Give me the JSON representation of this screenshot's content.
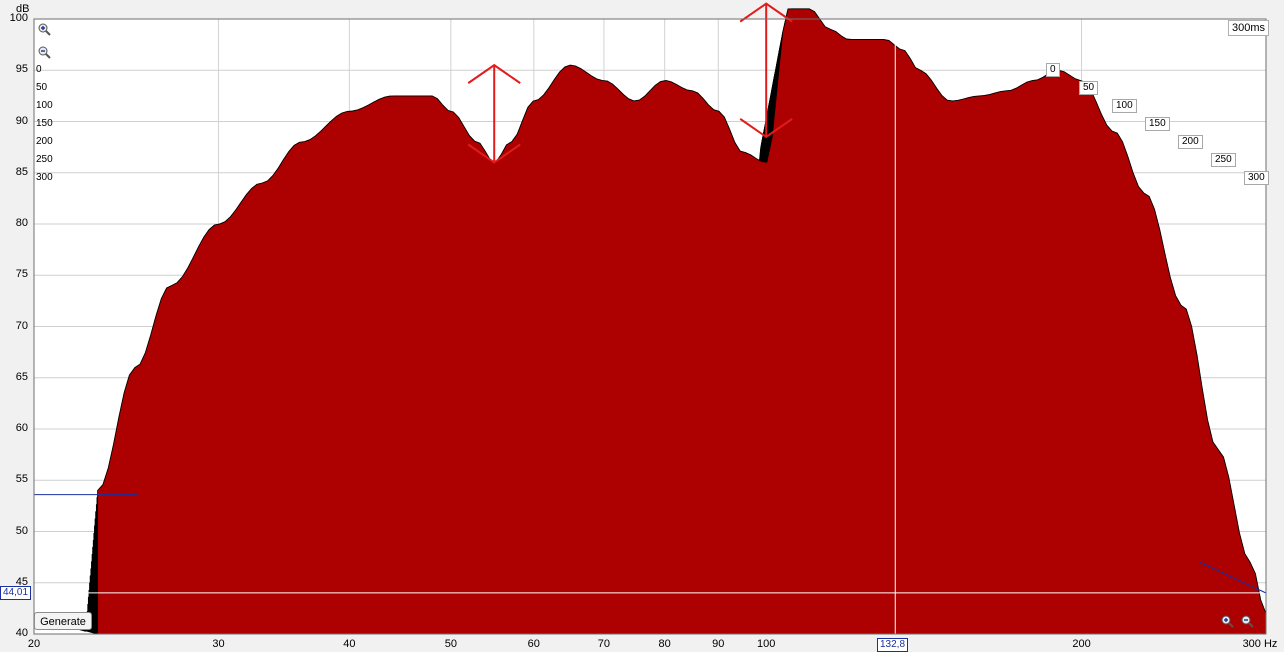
{
  "chart_data": {
    "type": "area",
    "variant": "waterfall (cumulative spectral decay), 3D",
    "title": "",
    "ylabel": "dB",
    "xlabel": "Hz",
    "x_scale": "log",
    "xlim": [
      20,
      300
    ],
    "ylim": [
      40,
      100
    ],
    "x_ticks": [
      {
        "value": 20,
        "label": "20"
      },
      {
        "value": 30,
        "label": "30"
      },
      {
        "value": 40,
        "label": "40"
      },
      {
        "value": 50,
        "label": "50"
      },
      {
        "value": 60,
        "label": "60"
      },
      {
        "value": 70,
        "label": "70"
      },
      {
        "value": 80,
        "label": "80"
      },
      {
        "value": 90,
        "label": "90"
      },
      {
        "value": 100,
        "label": "100"
      },
      {
        "value": 200,
        "label": "200"
      },
      {
        "value": 300,
        "label": "300 Hz"
      }
    ],
    "y_ticks": [
      {
        "value": 100,
        "label": "100"
      },
      {
        "value": 95,
        "label": "95"
      },
      {
        "value": 90,
        "label": "90"
      },
      {
        "value": 85,
        "label": "85"
      },
      {
        "value": 80,
        "label": "80"
      },
      {
        "value": 75,
        "label": "75"
      },
      {
        "value": 70,
        "label": "70"
      },
      {
        "value": 65,
        "label": "65"
      },
      {
        "value": 60,
        "label": "60"
      },
      {
        "value": 55,
        "label": "55"
      },
      {
        "value": 50,
        "label": "50"
      },
      {
        "value": 45,
        "label": "45"
      },
      {
        "value": 40,
        "label": "40"
      }
    ],
    "time_axis_ticks": [
      "0",
      "50",
      "100",
      "150",
      "200",
      "250",
      "300"
    ],
    "time_span_label": "300ms",
    "fill_color": "#ad0000",
    "line_color": "#000000",
    "grid": true,
    "front_slice": {
      "x": [
        23,
        25,
        27,
        30,
        33,
        36,
        40,
        44,
        48,
        50,
        53,
        55,
        57,
        60,
        65,
        70,
        75,
        80,
        85,
        90,
        95,
        100,
        105,
        110,
        115,
        120,
        125,
        130,
        135,
        140,
        150,
        160,
        170,
        180,
        190,
        200,
        215,
        230,
        250,
        270,
        290,
        300
      ],
      "y": [
        54,
        66,
        74,
        80,
        84,
        88,
        91,
        92.5,
        92.5,
        91,
        88,
        86,
        88,
        92,
        95.5,
        94,
        92,
        94,
        93,
        91,
        87,
        86,
        101,
        101,
        99,
        98,
        98,
        98,
        97,
        95,
        92,
        92.5,
        93,
        94,
        95,
        94,
        89,
        83,
        72,
        58,
        47,
        42
      ]
    },
    "cursor": {
      "x": 132.8,
      "x_label": "132,8",
      "y": 44.01,
      "y_label": "44,01"
    },
    "annotations": [
      "red double-headed arrow near 55 Hz",
      "red double-headed arrow near 100 Hz"
    ]
  },
  "controls": {
    "generate_label": "Generate"
  },
  "colors": {
    "accent": "#1a2fa0",
    "background": "#f1f1f1",
    "annotation": "#e21b1b"
  }
}
